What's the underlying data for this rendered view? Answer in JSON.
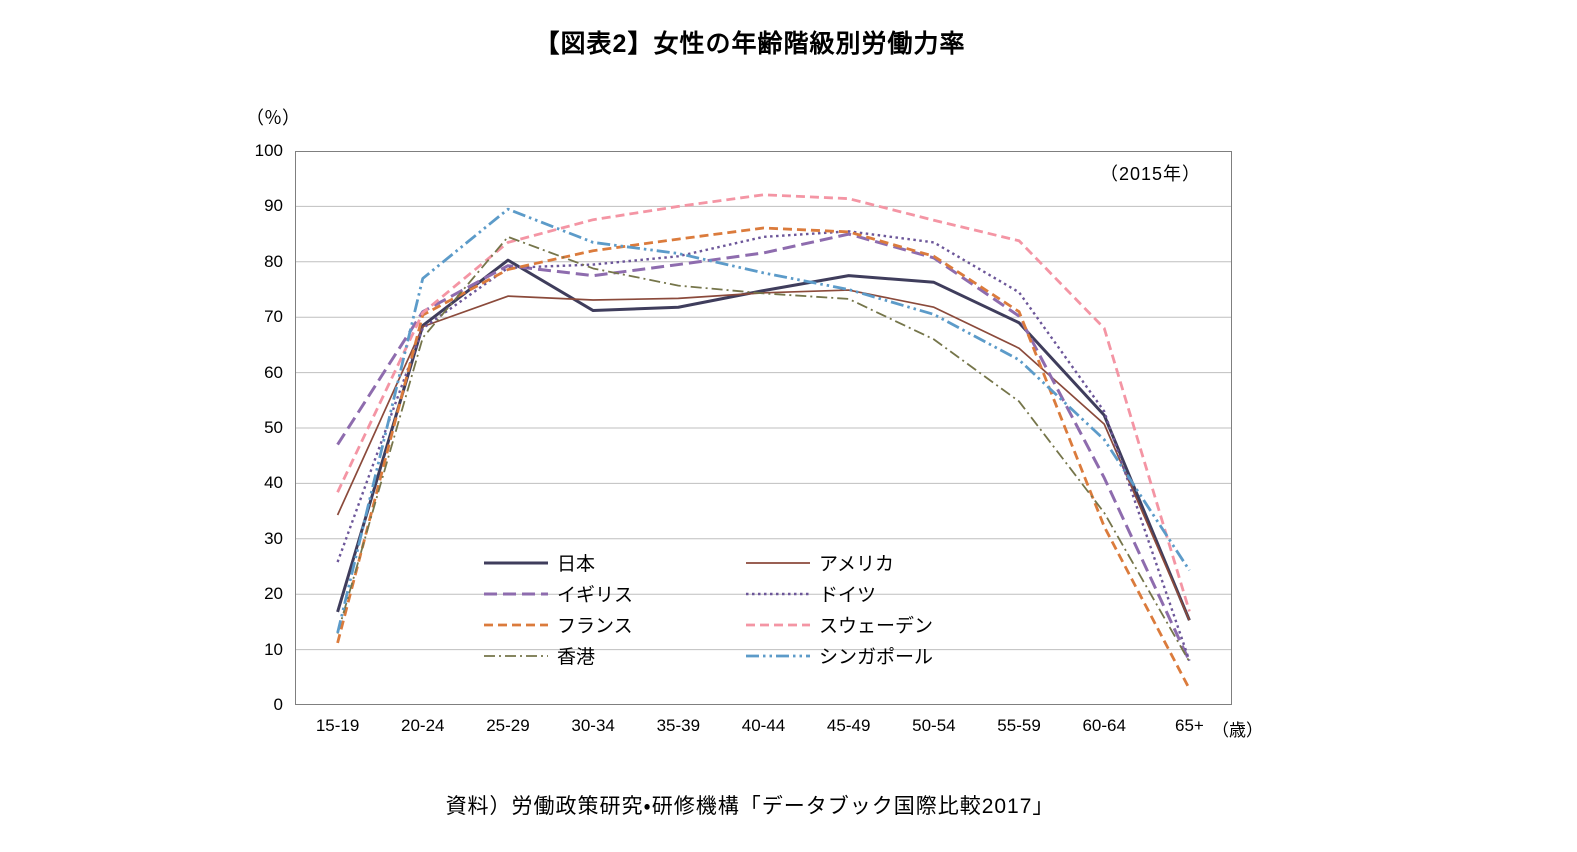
{
  "theme": {
    "background": "#FFFFFF",
    "grid_color": "#BFBFBF",
    "axis_color": "#7F7F7F",
    "text_color": "#000000"
  },
  "source_note": "資料）労働政策研究・研修機構「データブック国際比較2017」",
  "chart_data": {
    "type": "line",
    "title": "【図表2】女性の年齢階級別労働力率",
    "annotation": "（2015年）",
    "ylabel": "（％）",
    "x_axis_unit": "（歳）",
    "ylim": [
      0,
      100
    ],
    "ytick_step": 10,
    "grid": "horizontal",
    "legend_position": "inside-bottom-center",
    "categories": [
      "15-19",
      "20-24",
      "25-29",
      "30-34",
      "35-39",
      "40-44",
      "45-49",
      "50-54",
      "55-59",
      "60-64",
      "65+"
    ],
    "series": [
      {
        "id": "japan",
        "name": "日本",
        "color": "#3F3D5C",
        "dash": "",
        "width": 3,
        "values": [
          16.8,
          68.5,
          80.3,
          71.2,
          71.8,
          74.8,
          77.5,
          76.3,
          69.0,
          52.3,
          15.3
        ]
      },
      {
        "id": "usa",
        "name": "アメリカ",
        "color": "#8B4A3B",
        "dash": "",
        "width": 1.7,
        "values": [
          34.3,
          68.3,
          73.8,
          73.1,
          73.4,
          74.4,
          74.9,
          71.8,
          64.4,
          50.7,
          15.3
        ]
      },
      {
        "id": "uk",
        "name": "イギリス",
        "color": "#8E6CAE",
        "dash": "13 6",
        "width": 3,
        "values": [
          47.0,
          71.0,
          79.3,
          77.5,
          79.5,
          81.6,
          85.0,
          80.7,
          70.2,
          41.0,
          7.9
        ]
      },
      {
        "id": "germany",
        "name": "ドイツ",
        "color": "#6C5699",
        "dash": "2.5 3.5",
        "width": 2.4,
        "values": [
          25.8,
          68.0,
          78.9,
          79.5,
          81.0,
          84.5,
          85.5,
          83.5,
          74.5,
          53.0,
          8.0
        ]
      },
      {
        "id": "france",
        "name": "フランス",
        "color": "#DB7B3C",
        "dash": "9 5",
        "width": 2.8,
        "values": [
          11.2,
          70.4,
          78.6,
          82.0,
          84.1,
          86.1,
          85.4,
          81.0,
          71.0,
          32.2,
          2.9
        ]
      },
      {
        "id": "sweden",
        "name": "スウェーデン",
        "color": "#F495A4",
        "dash": "9 5",
        "width": 2.8,
        "values": [
          38.4,
          70.8,
          83.5,
          87.6,
          90.0,
          92.1,
          91.4,
          87.5,
          83.8,
          68.0,
          16.9
        ]
      },
      {
        "id": "hongkong",
        "name": "香港",
        "color": "#75754A",
        "dash": "11 4 2 4",
        "width": 1.8,
        "values": [
          12.9,
          66.3,
          84.5,
          78.8,
          75.7,
          74.3,
          73.3,
          66.0,
          54.8,
          34.7,
          7.8
        ]
      },
      {
        "id": "singapore",
        "name": "シンガポール",
        "color": "#5C9BC9",
        "dash": "13 4 2.5 4 2.5 4",
        "width": 2.8,
        "values": [
          13.0,
          77.0,
          89.5,
          83.5,
          81.5,
          78.0,
          75.0,
          70.5,
          62.3,
          47.9,
          24.3
        ]
      }
    ]
  }
}
